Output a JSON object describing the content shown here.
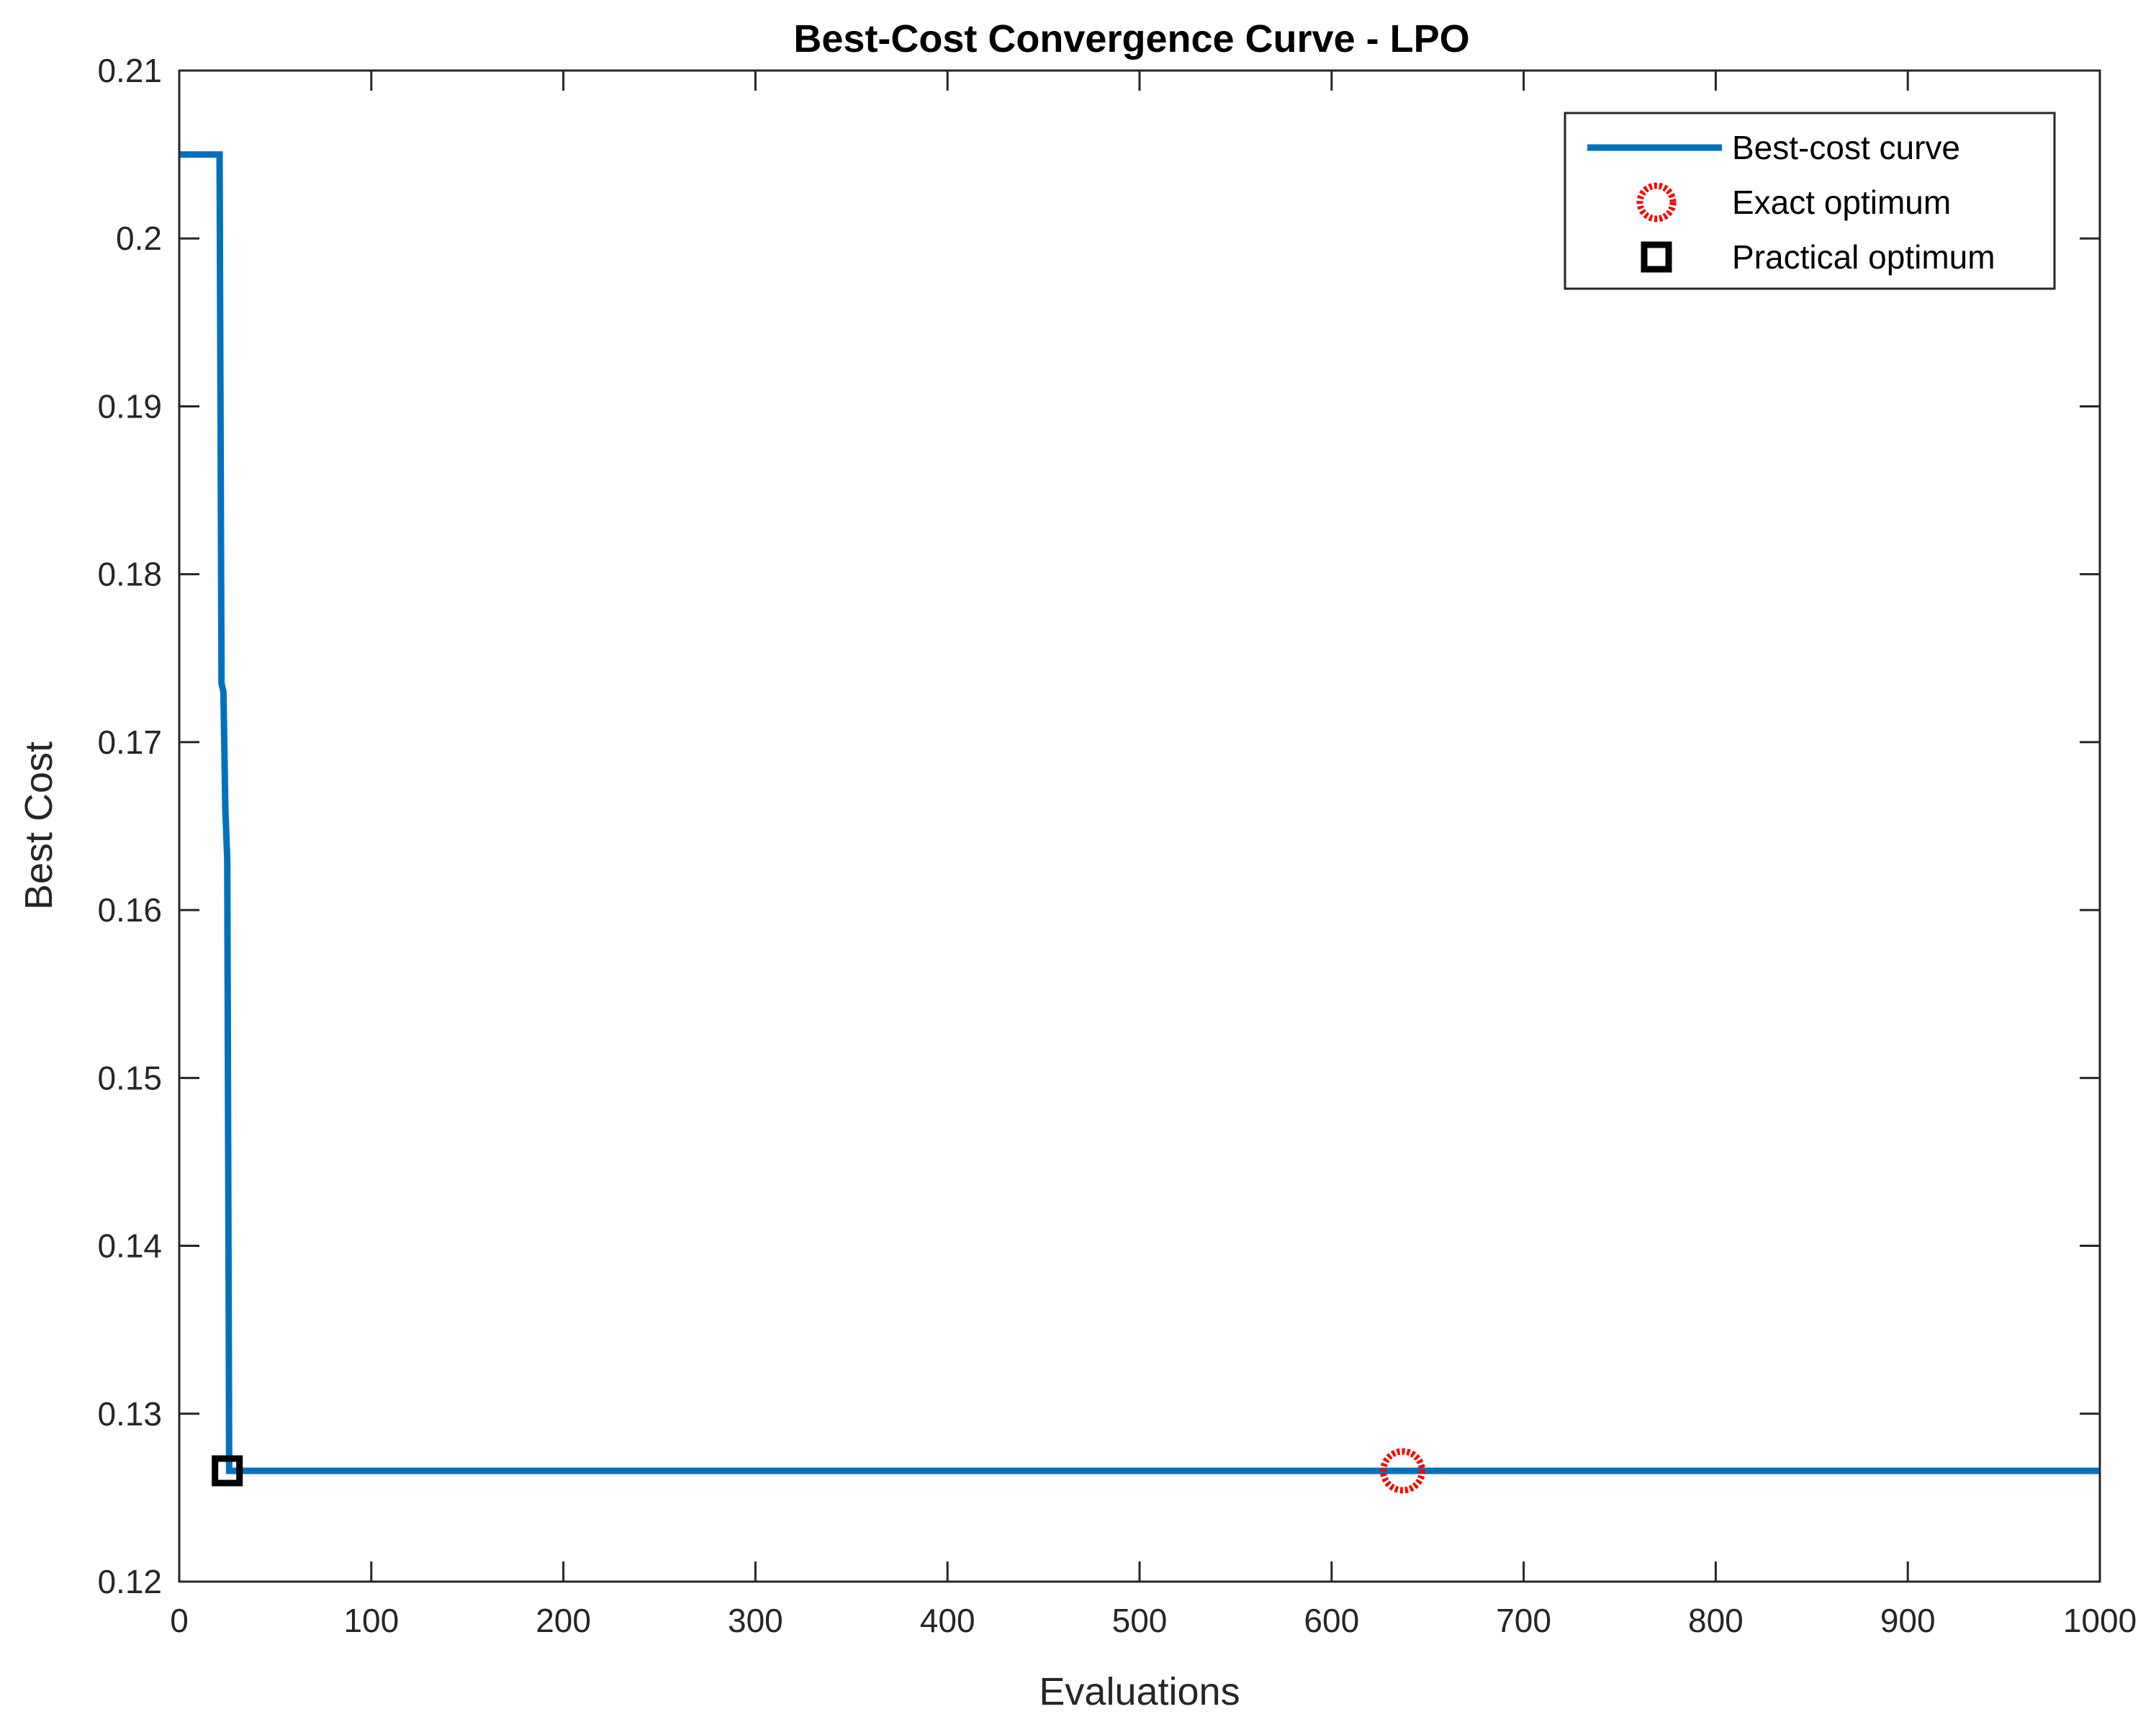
{
  "chart_data": {
    "type": "line",
    "title": "Best-Cost Convergence Curve - LPO",
    "xlabel": "Evaluations",
    "ylabel": "Best Cost",
    "xlim": [
      0,
      1000
    ],
    "ylim": [
      0.12,
      0.21
    ],
    "xticks": [
      0,
      100,
      200,
      300,
      400,
      500,
      600,
      700,
      800,
      900,
      1000
    ],
    "yticks": [
      0.12,
      0.13,
      0.14,
      0.15,
      0.16,
      0.17,
      0.18,
      0.19,
      0.2,
      0.21
    ],
    "xtick_labels": [
      "0",
      "100",
      "200",
      "300",
      "400",
      "500",
      "600",
      "700",
      "800",
      "900",
      "1000"
    ],
    "ytick_labels": [
      "0.12",
      "0.13",
      "0.14",
      "0.15",
      "0.16",
      "0.17",
      "0.18",
      "0.19",
      "0.2",
      "0.21"
    ],
    "grid": false,
    "box": true,
    "legend_position": "top-right",
    "series": [
      {
        "name": "Best-cost curve",
        "kind": "line",
        "color": "#0072BD",
        "x": [
          0,
          20,
          21,
          22,
          23,
          24,
          25,
          26,
          1000
        ],
        "y": [
          0.205,
          0.205,
          0.205,
          0.1735,
          0.173,
          0.166,
          0.163,
          0.1266,
          0.1266
        ]
      },
      {
        "name": "Exact optimum",
        "kind": "marker",
        "marker": "circle",
        "color": "#FF0000",
        "x": [
          637
        ],
        "y": [
          0.1266
        ]
      },
      {
        "name": "Practical optimum",
        "kind": "marker",
        "marker": "square",
        "color": "#000000",
        "x": [
          25
        ],
        "y": [
          0.1266
        ]
      }
    ]
  }
}
